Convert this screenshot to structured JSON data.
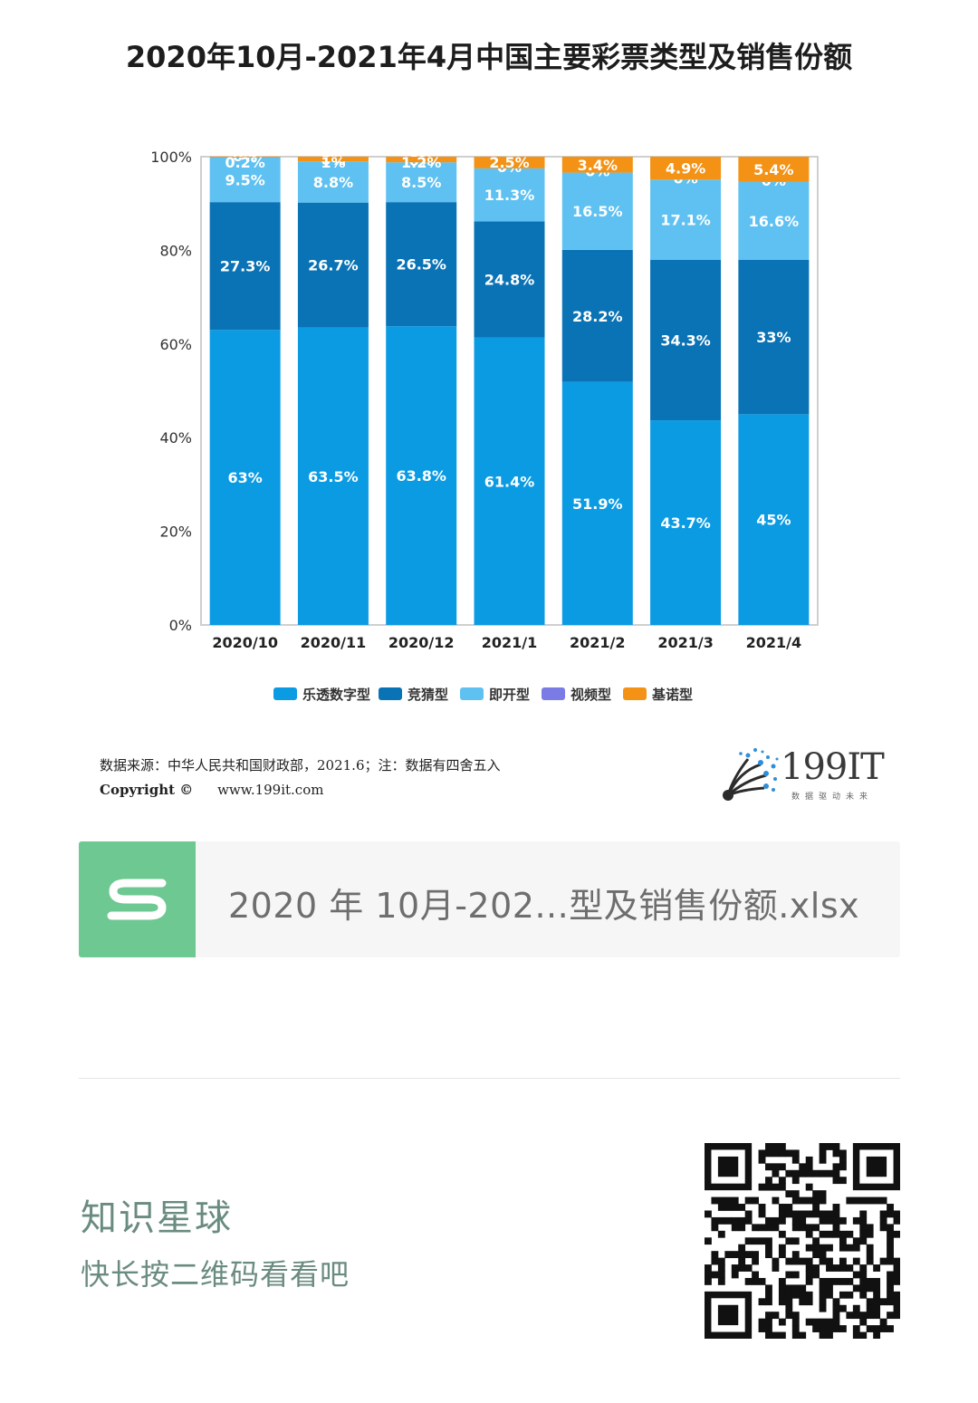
{
  "chart_data": {
    "type": "bar",
    "stacked": true,
    "title": "2020年10月-2021年4月中国主要彩票类型及销售份额",
    "categories": [
      "2020/10",
      "2020/11",
      "2020/12",
      "2021/1",
      "2021/2",
      "2021/3",
      "2021/4"
    ],
    "series": [
      {
        "name": "乐透数字型",
        "color": "#0b9be3",
        "values": [
          63,
          63.5,
          63.8,
          61.4,
          51.9,
          43.7,
          45
        ],
        "labels": [
          "63%",
          "63.5%",
          "63.8%",
          "61.4%",
          "51.9%",
          "43.7%",
          "45%"
        ]
      },
      {
        "name": "竞猜型",
        "color": "#0a73b5",
        "values": [
          27.3,
          26.7,
          26.5,
          24.8,
          28.2,
          34.3,
          33
        ],
        "labels": [
          "27.3%",
          "26.7%",
          "26.5%",
          "24.8%",
          "28.2%",
          "34.3%",
          "33%"
        ]
      },
      {
        "name": "即开型",
        "color": "#5fc1f1",
        "values": [
          9.5,
          8.8,
          8.5,
          11.3,
          16.5,
          17.1,
          16.6
        ],
        "labels": [
          "9.5%",
          "8.8%",
          "8.5%",
          "11.3%",
          "16.5%",
          "17.1%",
          "16.6%"
        ]
      },
      {
        "name": "视频型",
        "color": "#7b7be6",
        "values": [
          0,
          0,
          0,
          0,
          0,
          0,
          0
        ],
        "labels": [
          "0%",
          "0%",
          "0%",
          "0%",
          "0%",
          "0%",
          "0%"
        ]
      },
      {
        "name": "基诺型",
        "color": "#f39214",
        "values": [
          0.2,
          1,
          1.2,
          2.5,
          3.4,
          4.9,
          5.4
        ],
        "labels": [
          "0.2%",
          "1%",
          "1.2%",
          "2.5%",
          "3.4%",
          "4.9%",
          "5.4%"
        ]
      }
    ],
    "ylim": [
      0,
      100
    ],
    "yticks": [
      "0%",
      "20%",
      "40%",
      "60%",
      "80%",
      "100%"
    ],
    "xlabel": "",
    "ylabel": "",
    "legend_position": "bottom",
    "grid": false
  },
  "source": {
    "text": "数据来源：中华人民共和国财政部，2021.6；注：数据有四舍五入",
    "copyright_label": "Copyright ©",
    "url": "www.199it.com"
  },
  "logo": {
    "text": "199IT",
    "tagline": "数据驱动未来"
  },
  "file": {
    "name": "2020 年 10月-202...型及销售份额.xlsx",
    "icon": "s-icon",
    "color": "#6dc892"
  },
  "planet": {
    "title": "知识星球",
    "subtitle": "快长按二维码看看吧",
    "qr_icon": "qr-code-icon"
  }
}
